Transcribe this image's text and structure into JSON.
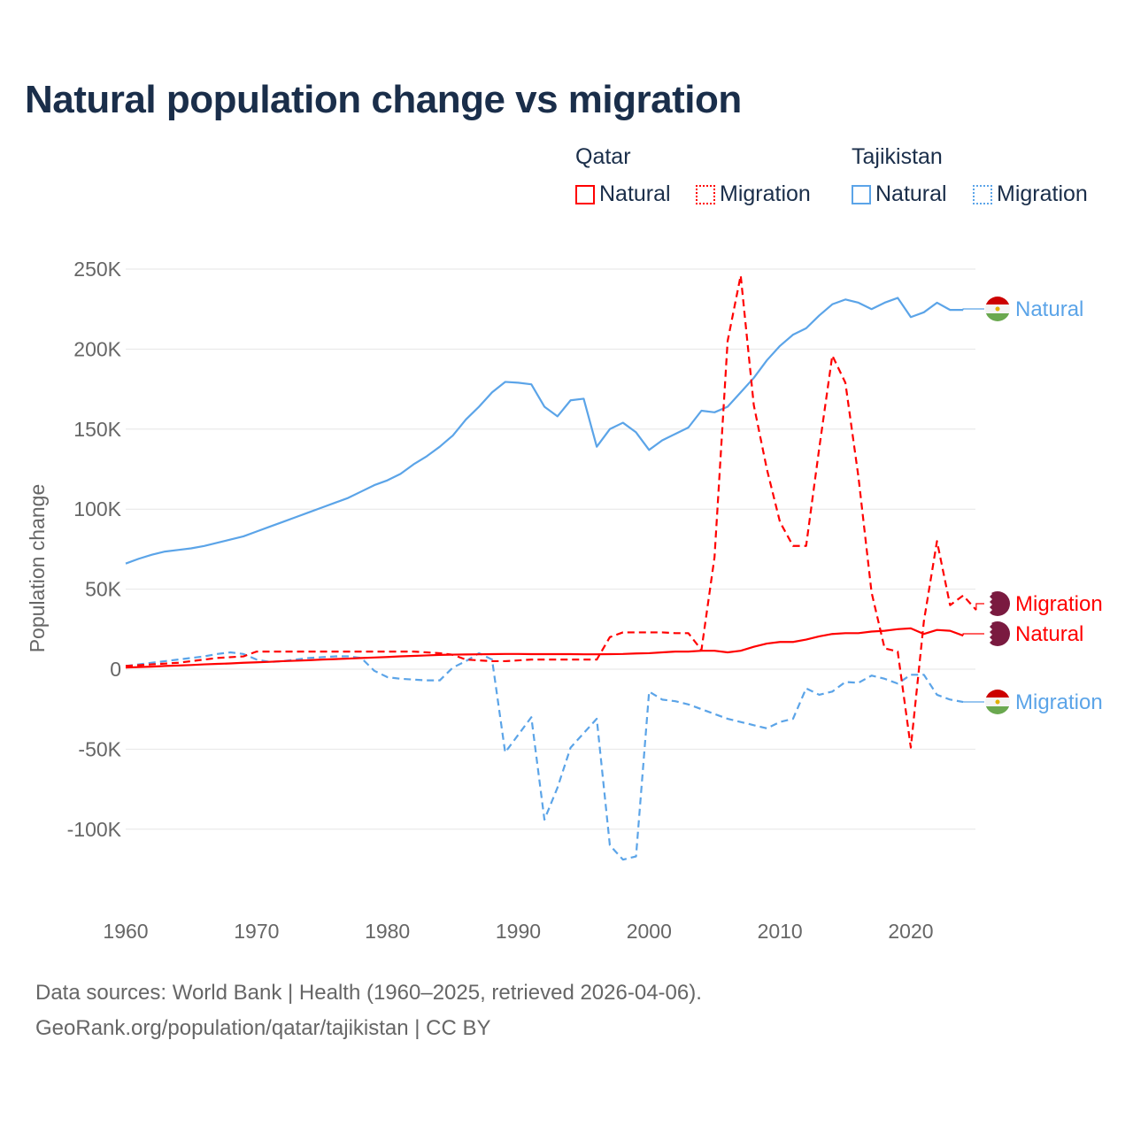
{
  "title": "Natural population change vs migration",
  "legend": {
    "groups": [
      {
        "name": "Qatar",
        "items": [
          "Natural",
          "Migration"
        ]
      },
      {
        "name": "Tajikistan",
        "items": [
          "Natural",
          "Migration"
        ]
      }
    ]
  },
  "footer": {
    "line1": "Data sources: World Bank | Health (1960–2025, retrieved 2026-04-06).",
    "line2": "GeoRank.org/population/qatar/tajikistan | CC BY"
  },
  "colors": {
    "qatar": "#ff0000",
    "tajikistan": "#5ba4e8"
  },
  "chart_data": {
    "type": "line",
    "title": "Natural population change vs migration",
    "xlabel": "",
    "ylabel": "Population change",
    "xlim": [
      1960,
      2025
    ],
    "ylim": [
      -130000,
      255000
    ],
    "xticks": [
      1960,
      1970,
      1980,
      1990,
      2000,
      2010,
      2020
    ],
    "yticks": [
      {
        "v": 250000,
        "l": "250K"
      },
      {
        "v": 200000,
        "l": "200K"
      },
      {
        "v": 150000,
        "l": "150K"
      },
      {
        "v": 100000,
        "l": "100K"
      },
      {
        "v": 50000,
        "l": "50K"
      },
      {
        "v": 0,
        "l": "0"
      },
      {
        "v": -50000,
        "l": "-50K"
      },
      {
        "v": -100000,
        "l": "-100K"
      }
    ],
    "x_start": 1960,
    "series": [
      {
        "name": "Tajikistan Natural",
        "country": "tajikistan",
        "kind": "natural",
        "end_label": "Natural",
        "values": [
          66,
          69,
          71.5,
          73.5,
          74.5,
          75.5,
          77,
          79,
          81,
          83,
          86,
          89,
          92,
          95,
          98,
          101,
          104,
          107,
          111,
          115,
          118,
          122,
          128,
          133,
          139,
          146,
          156,
          164,
          173,
          179.5,
          179,
          178,
          164,
          158,
          168,
          169,
          139,
          150,
          154,
          148,
          137,
          143,
          147,
          151,
          161.5,
          160.5,
          164,
          173,
          182,
          193,
          202,
          209,
          213,
          221,
          228,
          231,
          229,
          225,
          229,
          232,
          220,
          223,
          229,
          224.5,
          224.5
        ]
      },
      {
        "name": "Tajikistan Migration",
        "country": "tajikistan",
        "kind": "migration",
        "end_label": "Migration",
        "values": [
          2,
          3,
          4,
          5,
          6,
          7,
          8,
          9.5,
          10.5,
          9.5,
          6,
          4.5,
          5,
          6,
          7,
          7.5,
          8,
          8,
          7,
          -1,
          -5,
          -6,
          -6.5,
          -7,
          -7,
          1,
          5,
          10,
          6,
          -52,
          -41,
          -30,
          -94,
          -74,
          -49,
          -40,
          -31,
          -110,
          -119,
          -117,
          -14,
          -19,
          -20,
          -22,
          -25,
          -28,
          -31,
          -33,
          -35,
          -37,
          -33,
          -31,
          -12,
          -16,
          -14,
          -8,
          -8.5,
          -4,
          -6,
          -9,
          -3.5,
          -3.5,
          -16,
          -19,
          -20.5
        ]
      },
      {
        "name": "Qatar Migration",
        "country": "qatar",
        "kind": "migration",
        "end_label": "Migration",
        "values": [
          2,
          2.5,
          3,
          3.5,
          4,
          5,
          6,
          7,
          7.5,
          8,
          11,
          11,
          11,
          11,
          11,
          11,
          11,
          11,
          11,
          11,
          11,
          11,
          11,
          10.5,
          10,
          9,
          6,
          5.5,
          5,
          5,
          5.5,
          6,
          6,
          6,
          6,
          6,
          6,
          20,
          23,
          23,
          23,
          23,
          22.5,
          22.5,
          12,
          70,
          205,
          246,
          165,
          125,
          92,
          77,
          77,
          138,
          196,
          179,
          120,
          48,
          13,
          11,
          -49,
          30,
          80,
          40,
          46,
          37
        ]
      },
      {
        "name": "Qatar Natural",
        "country": "qatar",
        "kind": "natural",
        "end_label": "Natural",
        "values": [
          1,
          1.3,
          1.6,
          2,
          2.3,
          2.6,
          3,
          3.3,
          3.6,
          4,
          4.3,
          4.6,
          5,
          5.3,
          5.6,
          6,
          6.3,
          6.6,
          7,
          7.3,
          7.6,
          8,
          8.3,
          8.6,
          8.9,
          9.1,
          9.2,
          9.3,
          9.4,
          9.5,
          9.5,
          9.4,
          9.4,
          9.4,
          9.4,
          9.3,
          9.3,
          9.4,
          9.5,
          9.8,
          10,
          10.5,
          11,
          11,
          11.5,
          11.5,
          10.5,
          11.5,
          14,
          16,
          17,
          17,
          18.5,
          20.5,
          22,
          22.5,
          22.5,
          23.5,
          24,
          25,
          25.5,
          22,
          24.5,
          24,
          21
        ]
      }
    ]
  }
}
